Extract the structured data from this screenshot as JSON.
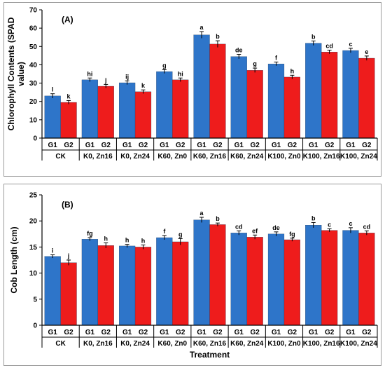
{
  "colors": {
    "G1": "#2e75c9",
    "G2": "#ee1c1c",
    "axis": "#000000"
  },
  "chart_data": [
    {
      "type": "bar",
      "panel_label": "(A)",
      "ylabel": "Chlorophyll Contents (SPAD value)",
      "xlabel": "",
      "ylim": [
        0,
        70
      ],
      "yticks": [
        "0",
        "10",
        "20",
        "30",
        "40",
        "50",
        "60",
        "70"
      ],
      "grid": false,
      "categories": [
        "CK",
        "K0, Zn16",
        "K0, Zn24",
        "K60, Zn0",
        "K60, Zn16",
        "K60, Zn24",
        "K100, Zn0",
        "K100, Zn16",
        "K100, Zn24"
      ],
      "group_labels": [
        "G1",
        "G2"
      ],
      "series": [
        {
          "values": [
            23.0,
            31.8,
            30.2,
            36.3,
            56.3,
            44.5,
            40.5,
            51.8,
            47.8
          ],
          "errors": [
            1.2,
            1.0,
            1.0,
            1.0,
            1.8,
            1.2,
            1.0,
            1.2,
            1.2
          ],
          "letters": [
            "l",
            "hi",
            "ij",
            "g",
            "a",
            "de",
            "f",
            "b",
            "c"
          ]
        },
        {
          "values": [
            19.5,
            28.3,
            25.3,
            31.8,
            51.3,
            37.0,
            33.3,
            47.0,
            43.6
          ],
          "errors": [
            1.0,
            1.0,
            1.0,
            1.0,
            1.8,
            1.2,
            1.0,
            1.0,
            1.2
          ],
          "letters": [
            "k",
            "j",
            "k",
            "hi",
            "b",
            "g",
            "h",
            "cd",
            "e"
          ]
        }
      ]
    },
    {
      "type": "bar",
      "panel_label": "(B)",
      "ylabel": "Cob Length (cm)",
      "xlabel": "Treatment",
      "ylim": [
        0,
        25
      ],
      "yticks": [
        "0",
        "5",
        "10",
        "15",
        "20",
        "25"
      ],
      "grid": false,
      "categories": [
        "CK",
        "K0, Zn16",
        "K0, Zn24",
        "K60, Zn0",
        "K60, Zn16",
        "K60, Zn24",
        "K100, Zn0",
        "K100, Zn16",
        "K100, Zn24"
      ],
      "group_labels": [
        "G1",
        "G2"
      ],
      "series": [
        {
          "values": [
            13.2,
            16.5,
            15.2,
            16.8,
            20.2,
            17.7,
            17.5,
            19.2,
            18.2
          ],
          "errors": [
            0.3,
            0.3,
            0.3,
            0.4,
            0.5,
            0.4,
            0.4,
            0.5,
            0.5
          ],
          "letters": [
            "i",
            "fg",
            "h",
            "f",
            "a",
            "cd",
            "de",
            "b",
            "c"
          ]
        },
        {
          "values": [
            12.0,
            15.3,
            15.0,
            16.0,
            19.3,
            16.9,
            16.4,
            18.2,
            17.7
          ],
          "errors": [
            0.5,
            0.5,
            0.4,
            0.6,
            0.3,
            0.4,
            0.3,
            0.3,
            0.4
          ],
          "letters": [
            "j",
            "h",
            "h",
            "g",
            "b",
            "ef",
            "fg",
            "c",
            "cd"
          ]
        }
      ]
    }
  ]
}
